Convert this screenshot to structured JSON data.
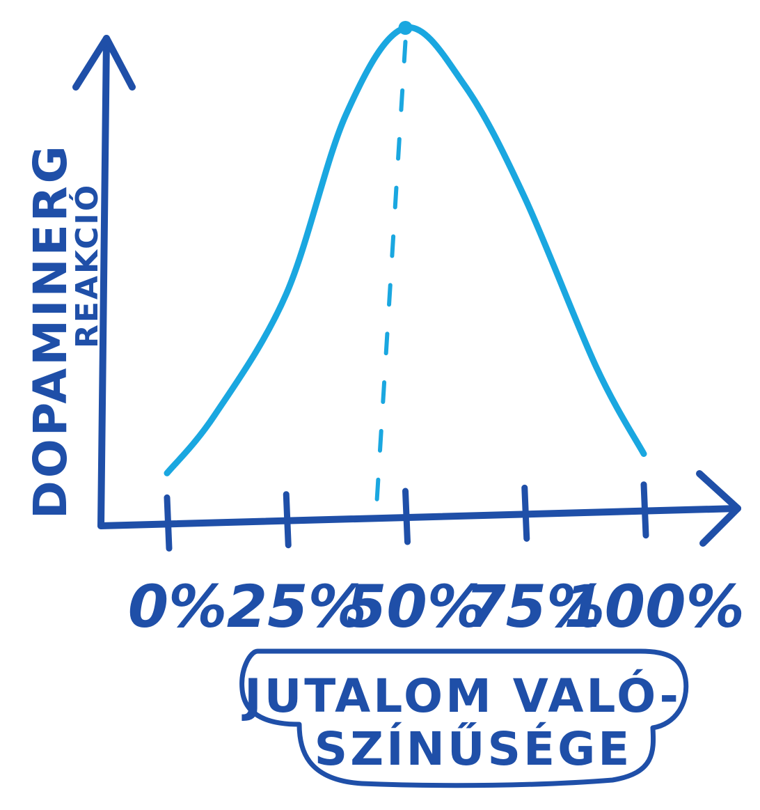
{
  "chart_data": {
    "type": "line",
    "ylabel_line1": "DOPAMINERG",
    "ylabel_line2": "REAKCIÓ",
    "xlabel_line1": "JUTALOM VALÓ-",
    "xlabel_line2": "SZÍNŰSÉGE",
    "categories": [
      "0%",
      "25%",
      "50%",
      "75%",
      "100%"
    ],
    "x": [
      0,
      10,
      25,
      37.5,
      50,
      62.5,
      75,
      90,
      100
    ],
    "y": [
      0.08,
      0.2,
      0.45,
      0.82,
      1.0,
      0.88,
      0.65,
      0.3,
      0.12
    ],
    "peak_x": 50,
    "xlim": [
      0,
      100
    ],
    "ylim": [
      0,
      1.0
    ],
    "grid": false,
    "colors": {
      "axis": "#1f4fa8",
      "curve": "#1aa7e0",
      "label": "#1f4fa8"
    }
  }
}
